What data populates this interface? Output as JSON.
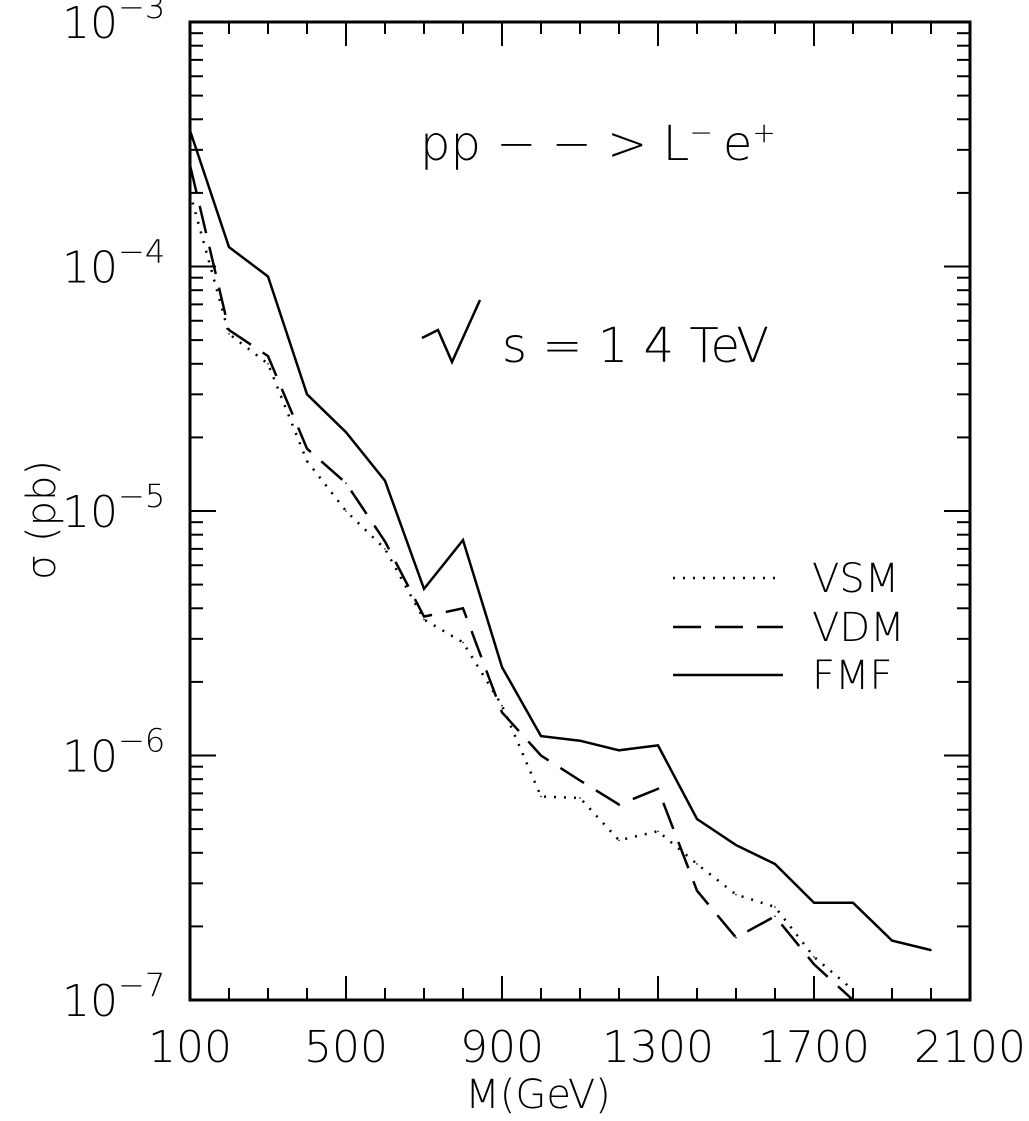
{
  "chart_data": {
    "type": "line",
    "xlabel": "M(GeV)",
    "ylabel": "σ (pb)",
    "xlim": [
      100,
      2100
    ],
    "ylim": [
      1e-07,
      0.001
    ],
    "y_scale": "log",
    "x_ticks": [
      100,
      500,
      900,
      1300,
      1700,
      2100
    ],
    "x_tick_labels": [
      "100",
      "500",
      "900",
      "1300",
      "1700",
      "2100"
    ],
    "y_ticks": [
      0.001,
      0.0001,
      1e-05,
      1e-06,
      1e-07
    ],
    "y_tick_labels": [
      {
        "base": "10",
        "exp": "−3"
      },
      {
        "base": "10",
        "exp": "−4"
      },
      {
        "base": "10",
        "exp": "−5"
      },
      {
        "base": "10",
        "exp": "−6"
      },
      {
        "base": "10",
        "exp": "−7"
      }
    ],
    "grid": false,
    "legend_position": "right",
    "annotations": {
      "process": "pp − − > L",
      "process_sup1": "−",
      "process_e": "e",
      "process_sup2": "+",
      "energy": "s = 1 4 TeV"
    },
    "series": [
      {
        "name": "VSM",
        "style": "dotted",
        "points": [
          [
            100,
            0.0002
          ],
          [
            200,
            5.3e-05
          ],
          [
            300,
            4e-05
          ],
          [
            400,
            1.6e-05
          ],
          [
            500,
            1e-05
          ],
          [
            600,
            7e-06
          ],
          [
            700,
            3.6e-06
          ],
          [
            800,
            2.9e-06
          ],
          [
            900,
            1.6e-06
          ],
          [
            1000,
            6.8e-07
          ],
          [
            1100,
            6.7e-07
          ],
          [
            1200,
            4.5e-07
          ],
          [
            1300,
            4.9e-07
          ],
          [
            1400,
            3.6e-07
          ],
          [
            1500,
            2.7e-07
          ],
          [
            1600,
            2.4e-07
          ],
          [
            1700,
            1.5e-07
          ],
          [
            1800,
            1.1e-07
          ]
        ]
      },
      {
        "name": "VDM",
        "style": "dashed",
        "points": [
          [
            100,
            0.00026
          ],
          [
            200,
            5.5e-05
          ],
          [
            300,
            4.3e-05
          ],
          [
            400,
            1.8e-05
          ],
          [
            500,
            1.3e-05
          ],
          [
            600,
            7.5e-06
          ],
          [
            700,
            3.7e-06
          ],
          [
            800,
            4e-06
          ],
          [
            900,
            1.5e-06
          ],
          [
            1000,
            1e-06
          ],
          [
            1100,
            7.9e-07
          ],
          [
            1200,
            6.3e-07
          ],
          [
            1300,
            7.3e-07
          ],
          [
            1400,
            2.8e-07
          ],
          [
            1500,
            1.8e-07
          ],
          [
            1600,
            2.2e-07
          ],
          [
            1700,
            1.4e-07
          ],
          [
            1800,
            1e-07
          ]
        ]
      },
      {
        "name": "FMF",
        "style": "solid",
        "points": [
          [
            100,
            0.00036
          ],
          [
            200,
            0.00012
          ],
          [
            300,
            9.1e-05
          ],
          [
            400,
            3e-05
          ],
          [
            500,
            2.1e-05
          ],
          [
            600,
            1.33e-05
          ],
          [
            700,
            4.8e-06
          ],
          [
            800,
            7.6e-06
          ],
          [
            900,
            2.3e-06
          ],
          [
            1000,
            1.2e-06
          ],
          [
            1100,
            1.15e-06
          ],
          [
            1200,
            1.05e-06
          ],
          [
            1300,
            1.1e-06
          ],
          [
            1400,
            5.5e-07
          ],
          [
            1500,
            4.3e-07
          ],
          [
            1600,
            3.6e-07
          ],
          [
            1700,
            2.5e-07
          ],
          [
            1800,
            2.5e-07
          ],
          [
            1900,
            1.75e-07
          ],
          [
            2000,
            1.6e-07
          ]
        ]
      }
    ]
  }
}
